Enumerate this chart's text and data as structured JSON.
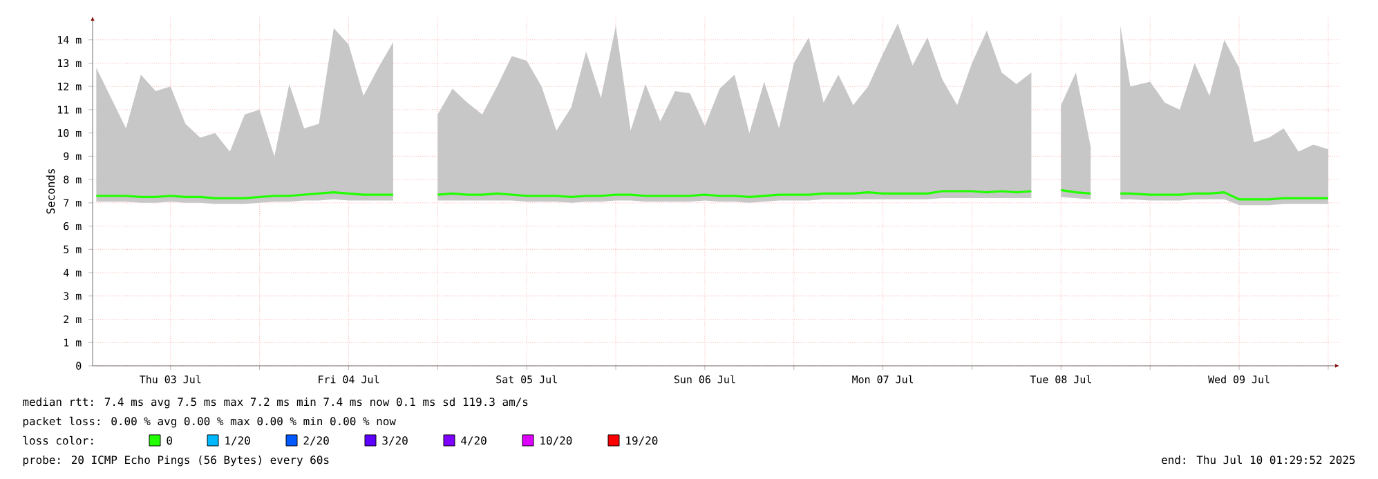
{
  "chart_data": {
    "type": "line",
    "ylabel": "Seconds",
    "xlim": [
      "2025-07-03T01:30",
      "2025-07-10T01:30"
    ],
    "xticks": [
      {
        "value": "2025-07-03T12:00",
        "label": "Thu 03 Jul"
      },
      {
        "value": "2025-07-04T00:00",
        "label": null
      },
      {
        "value": "2025-07-04T12:00",
        "label": "Fri 04 Jul"
      },
      {
        "value": "2025-07-05T00:00",
        "label": null
      },
      {
        "value": "2025-07-05T12:00",
        "label": "Sat 05 Jul"
      },
      {
        "value": "2025-07-06T00:00",
        "label": null
      },
      {
        "value": "2025-07-06T12:00",
        "label": "Sun 06 Jul"
      },
      {
        "value": "2025-07-07T00:00",
        "label": null
      },
      {
        "value": "2025-07-07T12:00",
        "label": "Mon 07 Jul"
      },
      {
        "value": "2025-07-08T00:00",
        "label": null
      },
      {
        "value": "2025-07-08T12:00",
        "label": "Tue 08 Jul"
      },
      {
        "value": "2025-07-09T00:00",
        "label": null
      },
      {
        "value": "2025-07-09T12:00",
        "label": "Wed 09 Jul"
      },
      {
        "value": "2025-07-10T00:00",
        "label": null
      }
    ],
    "ylim": [
      0,
      15
    ],
    "yticks": [
      0,
      {
        "value": 1,
        "label": "1 m"
      },
      {
        "value": 2,
        "label": "2 m"
      },
      {
        "value": 3,
        "label": "3 m"
      },
      {
        "value": 4,
        "label": "4 m"
      },
      {
        "value": 5,
        "label": "5 m"
      },
      {
        "value": 6,
        "label": "6 m"
      },
      {
        "value": 7,
        "label": "7 m"
      },
      {
        "value": 8,
        "label": "8 m"
      },
      {
        "value": 9,
        "label": "9 m"
      },
      {
        "value": 10,
        "label": "10 m"
      },
      {
        "value": 11,
        "label": "11 m"
      },
      {
        "value": 12,
        "label": "12 m"
      },
      {
        "value": 13,
        "label": "13 m"
      },
      {
        "value": 14,
        "label": "14 m"
      }
    ],
    "grid": true,
    "legend": "bottom",
    "legend_title": "loss color:",
    "x": [
      "2025-07-03T02:00",
      "2025-07-03T04:00",
      "2025-07-03T06:00",
      "2025-07-03T08:00",
      "2025-07-03T10:00",
      "2025-07-03T12:00",
      "2025-07-03T14:00",
      "2025-07-03T16:00",
      "2025-07-03T18:00",
      "2025-07-03T20:00",
      "2025-07-03T22:00",
      "2025-07-04T00:00",
      "2025-07-04T02:00",
      "2025-07-04T04:00",
      "2025-07-04T06:00",
      "2025-07-04T08:00",
      "2025-07-04T10:00",
      "2025-07-04T12:00",
      "2025-07-04T14:00",
      "2025-07-04T16:00",
      "2025-07-04T18:00",
      "2025-07-04T20:00",
      "2025-07-04T22:00",
      "2025-07-05T00:00",
      "2025-07-05T02:00",
      "2025-07-05T04:00",
      "2025-07-05T06:00",
      "2025-07-05T08:00",
      "2025-07-05T10:00",
      "2025-07-05T12:00",
      "2025-07-05T14:00",
      "2025-07-05T16:00",
      "2025-07-05T18:00",
      "2025-07-05T20:00",
      "2025-07-05T22:00",
      "2025-07-06T00:00",
      "2025-07-06T02:00",
      "2025-07-06T04:00",
      "2025-07-06T06:00",
      "2025-07-06T08:00",
      "2025-07-06T10:00",
      "2025-07-06T12:00",
      "2025-07-06T14:00",
      "2025-07-06T16:00",
      "2025-07-06T18:00",
      "2025-07-06T20:00",
      "2025-07-06T22:00",
      "2025-07-07T00:00",
      "2025-07-07T02:00",
      "2025-07-07T04:00",
      "2025-07-07T06:00",
      "2025-07-07T08:00",
      "2025-07-07T10:00",
      "2025-07-07T12:00",
      "2025-07-07T14:00",
      "2025-07-07T16:00",
      "2025-07-07T18:00",
      "2025-07-07T20:00",
      "2025-07-07T22:00",
      "2025-07-08T00:00",
      "2025-07-08T02:00",
      "2025-07-08T04:00",
      "2025-07-08T06:00",
      "2025-07-08T08:00",
      "2025-07-08T10:00",
      "2025-07-08T12:00",
      "2025-07-08T14:00",
      "2025-07-08T16:00",
      "2025-07-08T18:00",
      "2025-07-08T20:00",
      "2025-07-08T21:20",
      "2025-07-09T00:00",
      "2025-07-09T02:00",
      "2025-07-09T04:00",
      "2025-07-09T06:00",
      "2025-07-09T08:00",
      "2025-07-09T10:00",
      "2025-07-09T12:00",
      "2025-07-09T14:00",
      "2025-07-09T16:00",
      "2025-07-09T18:00",
      "2025-07-09T20:00",
      "2025-07-09T22:00",
      "2025-07-10T00:00"
    ],
    "series": [
      {
        "name": "0",
        "color": "#22ff00",
        "values": [
          7.3,
          7.3,
          7.3,
          7.25,
          7.25,
          7.3,
          7.25,
          7.25,
          7.2,
          7.2,
          7.2,
          7.25,
          7.3,
          7.3,
          7.35,
          7.4,
          7.45,
          7.4,
          7.35,
          7.35,
          7.35,
          null,
          null,
          7.35,
          7.4,
          7.35,
          7.35,
          7.4,
          7.35,
          7.3,
          7.3,
          7.3,
          7.25,
          7.3,
          7.3,
          7.35,
          7.35,
          7.3,
          7.3,
          7.3,
          7.3,
          7.35,
          7.3,
          7.3,
          7.25,
          7.3,
          7.35,
          7.35,
          7.35,
          7.4,
          7.4,
          7.4,
          7.45,
          7.4,
          7.4,
          7.4,
          7.4,
          7.5,
          7.5,
          7.5,
          7.45,
          7.5,
          7.45,
          7.5,
          null,
          7.55,
          7.45,
          7.4,
          null,
          7.4,
          7.4,
          7.35,
          7.35,
          7.35,
          7.4,
          7.4,
          7.45,
          7.15,
          7.15,
          7.15,
          7.2,
          7.2,
          7.2,
          7.2
        ],
        "lower": [
          7.05,
          7.05,
          7.05,
          7.0,
          7.0,
          7.05,
          7.0,
          7.0,
          6.95,
          6.95,
          6.95,
          7.0,
          7.05,
          7.05,
          7.1,
          7.1,
          7.15,
          7.1,
          7.1,
          7.1,
          7.1,
          null,
          null,
          7.1,
          7.1,
          7.1,
          7.1,
          7.1,
          7.1,
          7.05,
          7.05,
          7.05,
          7.0,
          7.05,
          7.05,
          7.1,
          7.1,
          7.05,
          7.05,
          7.05,
          7.05,
          7.1,
          7.05,
          7.05,
          7.0,
          7.05,
          7.1,
          7.1,
          7.1,
          7.15,
          7.15,
          7.15,
          7.15,
          7.15,
          7.15,
          7.15,
          7.15,
          7.2,
          7.2,
          7.2,
          7.2,
          7.2,
          7.2,
          7.2,
          null,
          7.25,
          7.2,
          7.15,
          null,
          7.15,
          7.15,
          7.1,
          7.1,
          7.1,
          7.15,
          7.15,
          7.15,
          6.9,
          6.9,
          6.9,
          6.95,
          6.95,
          6.95,
          6.95
        ],
        "upper": [
          12.8,
          11.5,
          10.2,
          12.5,
          11.8,
          12.0,
          10.4,
          9.8,
          10.0,
          9.2,
          10.8,
          11.0,
          9.0,
          12.1,
          10.2,
          10.4,
          14.5,
          13.8,
          11.6,
          12.8,
          13.9,
          null,
          null,
          10.8,
          11.9,
          11.3,
          10.8,
          12.0,
          13.3,
          13.1,
          12.0,
          10.1,
          11.1,
          13.5,
          11.5,
          14.6,
          10.1,
          12.1,
          10.5,
          11.8,
          11.7,
          10.3,
          11.9,
          12.5,
          10.0,
          12.2,
          10.2,
          13.0,
          14.1,
          11.3,
          12.5,
          11.2,
          12.0,
          13.4,
          14.7,
          12.9,
          14.1,
          12.3,
          11.2,
          13.0,
          14.4,
          12.6,
          12.1,
          12.6,
          null,
          11.2,
          12.6,
          9.4,
          null,
          14.6,
          12.0,
          12.2,
          11.3,
          11.0,
          13.0,
          11.6,
          14.0,
          12.8,
          9.6,
          9.8,
          10.2,
          9.2,
          9.5,
          9.3
        ]
      },
      {
        "name": "1/20",
        "color": "#00b8ff",
        "values": [
          null,
          null,
          null,
          null,
          null,
          null,
          null,
          null,
          null,
          null,
          null,
          null,
          null,
          null,
          null,
          null,
          null,
          null,
          null,
          null,
          null,
          null,
          null,
          null,
          null,
          null,
          null,
          null,
          null,
          null,
          null,
          null,
          null,
          null,
          null,
          null,
          null,
          null,
          null,
          null,
          null,
          null,
          null,
          null,
          null,
          null,
          null,
          null,
          null,
          null,
          null,
          null,
          null,
          null,
          null,
          null,
          null,
          null,
          null,
          null,
          null,
          null,
          null,
          null,
          null,
          null,
          null,
          null,
          null,
          null,
          null,
          null,
          null,
          null,
          null,
          null,
          null,
          null,
          null,
          null,
          null,
          null,
          null,
          null
        ]
      },
      {
        "name": "2/20",
        "color": "#0059ff",
        "values": [
          null,
          null,
          null,
          null,
          null,
          null,
          null,
          null,
          null,
          null,
          null,
          null,
          null,
          null,
          null,
          null,
          null,
          null,
          null,
          null,
          null,
          null,
          null,
          null,
          null,
          null,
          null,
          null,
          null,
          null,
          null,
          null,
          null,
          null,
          null,
          null,
          null,
          null,
          null,
          null,
          null,
          null,
          null,
          null,
          null,
          null,
          null,
          null,
          null,
          null,
          null,
          null,
          null,
          null,
          null,
          null,
          null,
          null,
          null,
          null,
          null,
          null,
          null,
          null,
          null,
          null,
          null,
          null,
          null,
          null,
          null,
          null,
          null,
          null,
          null,
          null,
          null,
          null,
          null,
          null,
          null,
          null,
          null,
          null
        ]
      },
      {
        "name": "3/20",
        "color": "#5e00ff",
        "values": [
          null,
          null,
          null,
          null,
          null,
          null,
          null,
          null,
          null,
          null,
          null,
          null,
          null,
          null,
          null,
          null,
          null,
          null,
          null,
          null,
          null,
          null,
          null,
          null,
          null,
          null,
          null,
          null,
          null,
          null,
          null,
          null,
          null,
          null,
          null,
          null,
          null,
          null,
          null,
          null,
          null,
          null,
          null,
          null,
          null,
          null,
          null,
          null,
          null,
          null,
          null,
          null,
          null,
          null,
          null,
          null,
          null,
          null,
          null,
          null,
          null,
          null,
          null,
          null,
          null,
          null,
          null,
          null,
          null,
          null,
          null,
          null,
          null,
          null,
          null,
          null,
          null,
          null,
          null,
          null,
          null,
          null,
          null,
          null
        ]
      },
      {
        "name": "4/20",
        "color": "#7e00ff",
        "values": [
          null,
          null,
          null,
          null,
          null,
          null,
          null,
          null,
          null,
          null,
          null,
          null,
          null,
          null,
          null,
          null,
          null,
          null,
          null,
          null,
          null,
          null,
          null,
          null,
          null,
          null,
          null,
          null,
          null,
          null,
          null,
          null,
          null,
          null,
          null,
          null,
          null,
          null,
          null,
          null,
          null,
          null,
          null,
          null,
          null,
          null,
          null,
          null,
          null,
          null,
          null,
          null,
          null,
          null,
          null,
          null,
          null,
          null,
          null,
          null,
          null,
          null,
          null,
          null,
          null,
          null,
          null,
          null,
          null,
          null,
          null,
          null,
          null,
          null,
          null,
          null,
          null,
          null,
          null,
          null,
          null,
          null,
          null,
          null
        ]
      },
      {
        "name": "10/20",
        "color": "#dd00ff",
        "values": [
          null,
          null,
          null,
          null,
          null,
          null,
          null,
          null,
          null,
          null,
          null,
          null,
          null,
          null,
          null,
          null,
          null,
          null,
          null,
          null,
          null,
          null,
          null,
          null,
          null,
          null,
          null,
          null,
          null,
          null,
          null,
          null,
          null,
          null,
          null,
          null,
          null,
          null,
          null,
          null,
          null,
          null,
          null,
          null,
          null,
          null,
          null,
          null,
          null,
          null,
          null,
          null,
          null,
          null,
          null,
          null,
          null,
          null,
          null,
          null,
          null,
          null,
          null,
          null,
          null,
          null,
          null,
          null,
          null,
          null,
          null,
          null,
          null,
          null,
          null,
          null,
          null,
          null,
          null,
          null,
          null,
          null,
          null,
          null
        ]
      },
      {
        "name": "19/20",
        "color": "#ff0000",
        "values": [
          null,
          null,
          null,
          null,
          null,
          null,
          null,
          null,
          null,
          null,
          null,
          null,
          null,
          null,
          null,
          null,
          null,
          null,
          null,
          null,
          null,
          null,
          null,
          null,
          null,
          null,
          null,
          null,
          null,
          null,
          null,
          null,
          null,
          null,
          null,
          null,
          null,
          null,
          null,
          null,
          null,
          null,
          null,
          null,
          null,
          null,
          null,
          null,
          null,
          null,
          null,
          null,
          null,
          null,
          null,
          null,
          null,
          null,
          null,
          null,
          null,
          null,
          null,
          null,
          null,
          null,
          null,
          null,
          null,
          null,
          null,
          null,
          null,
          null,
          null,
          null,
          null,
          null,
          null,
          null,
          null,
          null,
          null,
          null
        ]
      }
    ],
    "annotations": [
      "median rtt: 7.4 ms avg 7.5 ms max 7.2 ms min 7.4 ms now 0.1 ms sd 119.3 am/s",
      "packet loss: 0.00 % avg 0.00 % max 0.00 % min 0.00 % now",
      "probe: 20 ICMP Echo Pings (56 Bytes) every 60s",
      "end: Thu Jul 10 01:29:52 2025"
    ]
  }
}
